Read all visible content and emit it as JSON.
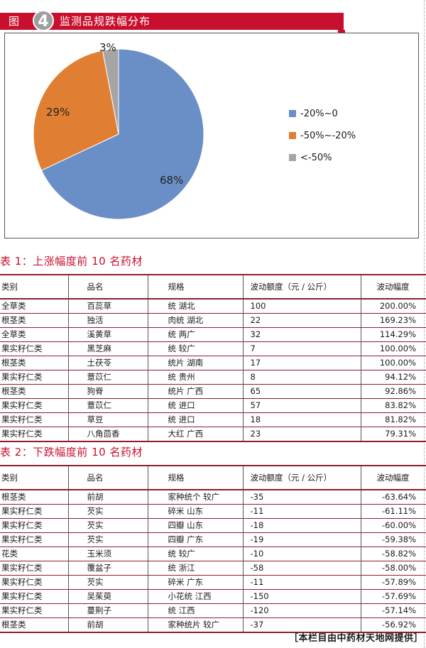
{
  "figure": {
    "label": "图",
    "number": "4",
    "title": "监测品规跌幅分布",
    "accent_color": "#c8102e"
  },
  "chart_data": {
    "type": "pie",
    "categories": [
      "-20%~0",
      "-50%~-20%",
      "<-50%"
    ],
    "values": [
      68,
      29,
      3
    ],
    "value_labels": [
      "68%",
      "29%",
      "3%"
    ],
    "colors": [
      "#6a8ec6",
      "#e07f34",
      "#a5a5a5"
    ],
    "legend_position": "right"
  },
  "table1": {
    "title": "表 1：上涨幅度前 10 名药材",
    "headers": [
      "类别",
      "品名",
      "规格",
      "波动额度（元 / 公斤）",
      "波动幅度"
    ],
    "rows": [
      [
        "全草类",
        "百蕊草",
        "统  湖北",
        "100",
        "200.00%"
      ],
      [
        "根茎类",
        "独活",
        "肉统  湖北",
        "22",
        "169.23%"
      ],
      [
        "全草类",
        "溪黄草",
        "统  两广",
        "32",
        "114.29%"
      ],
      [
        "果实籽仁类",
        "黑芝麻",
        "统  较广",
        "7",
        "100.00%"
      ],
      [
        "根茎类",
        "土茯苓",
        "统片  湖南",
        "17",
        "100.00%"
      ],
      [
        "果实籽仁类",
        "薏苡仁",
        "统  贵州",
        "8",
        "94.12%"
      ],
      [
        "根茎类",
        "狗脊",
        "统片  广西",
        "65",
        "92.86%"
      ],
      [
        "果实籽仁类",
        "薏苡仁",
        "统  进口",
        "57",
        "83.82%"
      ],
      [
        "果实籽仁类",
        "草豆",
        "统  进口",
        "18",
        "81.82%"
      ],
      [
        "果实籽仁类",
        "八角茴香",
        "大红  广西",
        "23",
        "79.31%"
      ]
    ]
  },
  "table2": {
    "title": "表 2：下跌幅度前 10 名药材",
    "headers": [
      "类别",
      "品名",
      "规格",
      "波动额度（元 / 公斤）",
      "波动幅度"
    ],
    "rows": [
      [
        "根茎类",
        "前胡",
        "家种统个  较广",
        "-35",
        "-63.64%"
      ],
      [
        "果实籽仁类",
        "芡实",
        "碎米  山东",
        "-11",
        "-61.11%"
      ],
      [
        "果实籽仁类",
        "芡实",
        "四瓣  山东",
        "-18",
        "-60.00%"
      ],
      [
        "果实籽仁类",
        "芡实",
        "四瓣  广东",
        "-19",
        "-59.38%"
      ],
      [
        "花类",
        "玉米须",
        "统  较广",
        "-10",
        "-58.82%"
      ],
      [
        "果实籽仁类",
        "覆盆子",
        "统  浙江",
        "-58",
        "-58.00%"
      ],
      [
        "果实籽仁类",
        "芡实",
        "碎米  广东",
        "-11",
        "-57.89%"
      ],
      [
        "果实籽仁类",
        "吴茱萸",
        "小花统  江西",
        "-150",
        "-57.69%"
      ],
      [
        "果实籽仁类",
        "蔓荆子",
        "统  江西",
        "-120",
        "-57.14%"
      ],
      [
        "根茎类",
        "前胡",
        "家种统片  较广",
        "-37",
        "-56.92%"
      ]
    ]
  },
  "source": "［本栏目由中药材天地网提供］"
}
